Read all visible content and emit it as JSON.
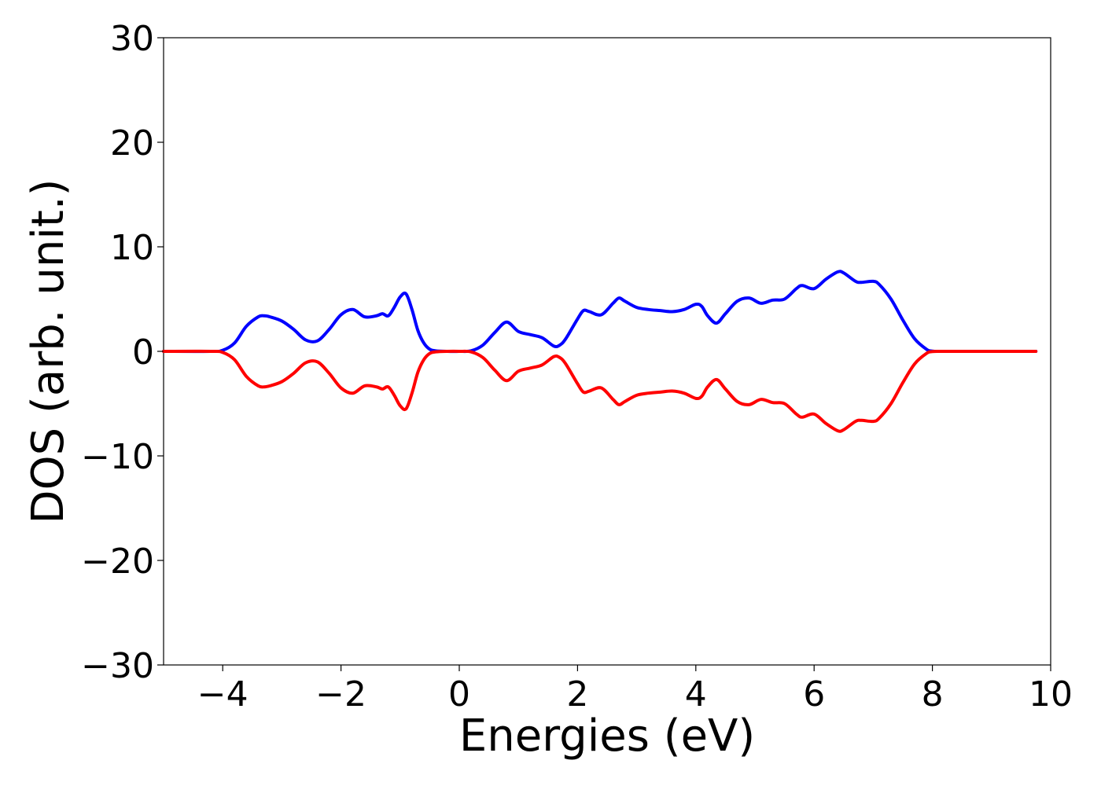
{
  "chart_data": {
    "type": "line",
    "title": "",
    "xlabel": "Energies (eV)",
    "ylabel": "DOS (arb. unit.)",
    "xlim": [
      -5,
      10
    ],
    "ylim": [
      -30,
      30
    ],
    "xticks": [
      -4,
      -2,
      0,
      2,
      4,
      6,
      8,
      10
    ],
    "xtick_labels": [
      "−4",
      "−2",
      "0",
      "2",
      "4",
      "6",
      "8",
      "10"
    ],
    "yticks": [
      -30,
      -20,
      -10,
      0,
      10,
      20,
      30
    ],
    "ytick_labels": [
      "−30",
      "−20",
      "−10",
      "0",
      "10",
      "20",
      "30"
    ],
    "grid": false,
    "legend": "none",
    "series": [
      {
        "color": "#0000ff",
        "x": [
          -5,
          -4.2,
          -4.0,
          -3.8,
          -3.6,
          -3.4,
          -3.3,
          -3.2,
          -3.0,
          -2.8,
          -2.6,
          -2.4,
          -2.2,
          -2.0,
          -1.8,
          -1.6,
          -1.4,
          -1.3,
          -1.2,
          -1.1,
          -1.0,
          -0.9,
          -0.8,
          -0.7,
          -0.6,
          -0.5,
          -0.4,
          -0.2,
          0.0,
          0.2,
          0.4,
          0.6,
          0.8,
          1.0,
          1.2,
          1.4,
          1.6,
          1.7,
          1.8,
          2.0,
          2.1,
          2.2,
          2.4,
          2.6,
          2.7,
          2.8,
          3.0,
          3.2,
          3.4,
          3.6,
          3.8,
          4.0,
          4.1,
          4.2,
          4.35,
          4.5,
          4.7,
          4.9,
          5.1,
          5.3,
          5.5,
          5.7,
          5.8,
          6.0,
          6.2,
          6.4,
          6.5,
          6.7,
          6.8,
          7.0,
          7.1,
          7.3,
          7.5,
          7.7,
          7.9,
          8.0,
          8.2,
          9.0,
          9.75
        ],
        "y": [
          0,
          0,
          0.1,
          0.8,
          2.4,
          3.3,
          3.4,
          3.3,
          2.9,
          2.1,
          1.1,
          1.0,
          2.1,
          3.5,
          4.0,
          3.3,
          3.4,
          3.6,
          3.4,
          4.2,
          5.2,
          5.5,
          4.0,
          2.0,
          0.8,
          0.2,
          0.05,
          0,
          0.0,
          0.05,
          0.6,
          1.8,
          2.8,
          1.9,
          1.6,
          1.3,
          0.5,
          0.6,
          1.2,
          3.1,
          3.9,
          3.8,
          3.5,
          4.6,
          5.1,
          4.8,
          4.2,
          4.0,
          3.9,
          3.8,
          4.0,
          4.5,
          4.3,
          3.4,
          2.7,
          3.6,
          4.8,
          5.1,
          4.6,
          4.9,
          5.0,
          6.0,
          6.3,
          6.0,
          6.9,
          7.6,
          7.5,
          6.7,
          6.6,
          6.7,
          6.4,
          5.0,
          3.0,
          1.2,
          0.2,
          0.02,
          0,
          0,
          0
        ]
      },
      {
        "color": "#ff0000",
        "x": [
          -5,
          -4.2,
          -4.0,
          -3.8,
          -3.6,
          -3.4,
          -3.3,
          -3.2,
          -3.0,
          -2.8,
          -2.6,
          -2.4,
          -2.2,
          -2.0,
          -1.8,
          -1.6,
          -1.4,
          -1.3,
          -1.2,
          -1.1,
          -1.0,
          -0.9,
          -0.8,
          -0.7,
          -0.6,
          -0.5,
          -0.4,
          -0.2,
          0.0,
          0.2,
          0.4,
          0.6,
          0.8,
          1.0,
          1.2,
          1.4,
          1.6,
          1.7,
          1.8,
          2.0,
          2.1,
          2.2,
          2.4,
          2.6,
          2.7,
          2.8,
          3.0,
          3.2,
          3.4,
          3.6,
          3.8,
          4.0,
          4.1,
          4.2,
          4.35,
          4.5,
          4.7,
          4.9,
          5.1,
          5.3,
          5.5,
          5.7,
          5.8,
          6.0,
          6.2,
          6.4,
          6.5,
          6.7,
          6.8,
          7.0,
          7.1,
          7.3,
          7.5,
          7.7,
          7.9,
          8.0,
          8.2,
          9.0,
          9.75
        ],
        "y": [
          0,
          0,
          -0.1,
          -0.8,
          -2.4,
          -3.3,
          -3.4,
          -3.3,
          -2.9,
          -2.1,
          -1.1,
          -1.0,
          -2.1,
          -3.5,
          -4.0,
          -3.3,
          -3.4,
          -3.6,
          -3.4,
          -4.2,
          -5.2,
          -5.5,
          -4.0,
          -2.0,
          -0.8,
          -0.2,
          -0.05,
          0,
          0.0,
          -0.05,
          -0.6,
          -1.8,
          -2.8,
          -1.9,
          -1.6,
          -1.3,
          -0.5,
          -0.6,
          -1.2,
          -3.1,
          -3.9,
          -3.8,
          -3.5,
          -4.6,
          -5.1,
          -4.8,
          -4.2,
          -4.0,
          -3.9,
          -3.8,
          -4.0,
          -4.5,
          -4.3,
          -3.4,
          -2.7,
          -3.6,
          -4.8,
          -5.1,
          -4.6,
          -4.9,
          -5.0,
          -6.0,
          -6.3,
          -6.0,
          -6.9,
          -7.6,
          -7.5,
          -6.7,
          -6.6,
          -6.7,
          -6.4,
          -5.0,
          -3.0,
          -1.2,
          -0.2,
          -0.02,
          0,
          0,
          0
        ]
      }
    ]
  }
}
